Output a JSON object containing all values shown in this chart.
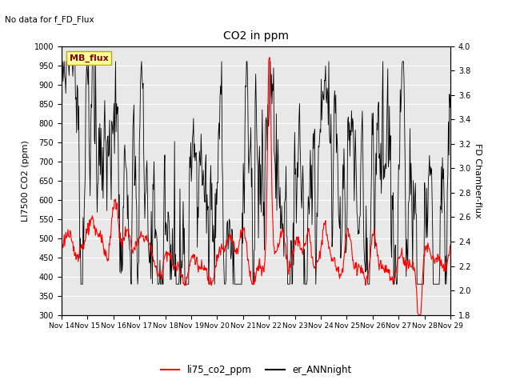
{
  "title": "CO2 in ppm",
  "top_note": "No data for f_FD_Flux",
  "ylabel_left": "LI7500 CO2 (ppm)",
  "ylabel_right": "FD Chamber-flux",
  "ylim_left": [
    300,
    1000
  ],
  "ylim_right": [
    1.8,
    4.0
  ],
  "yticks_left": [
    300,
    350,
    400,
    450,
    500,
    550,
    600,
    650,
    700,
    750,
    800,
    850,
    900,
    950,
    1000
  ],
  "yticks_right": [
    1.8,
    2.0,
    2.2,
    2.4,
    2.6,
    2.8,
    3.0,
    3.2,
    3.4,
    3.6,
    3.8,
    4.0
  ],
  "xticklabels": [
    "Nov 14",
    "Nov 15",
    "Nov 16",
    "Nov 17",
    "Nov 18",
    "Nov 19",
    "Nov 20",
    "Nov 21",
    "Nov 22",
    "Nov 23",
    "Nov 24",
    "Nov 25",
    "Nov 26",
    "Nov 27",
    "Nov 28",
    "Nov 29"
  ],
  "legend_box_label": "MB_flux",
  "legend_box_color": "#ffff99",
  "legend_box_border": "#bbaa00",
  "legend_line1_color": "#ff0000",
  "legend_line1_label": "li75_co2_ppm",
  "legend_line2_color": "#000000",
  "legend_line2_label": "er_ANNnight",
  "background_color": "#ffffff",
  "plot_bg_color": "#e8e8e8",
  "grid_color": "#ffffff",
  "seed": 123
}
